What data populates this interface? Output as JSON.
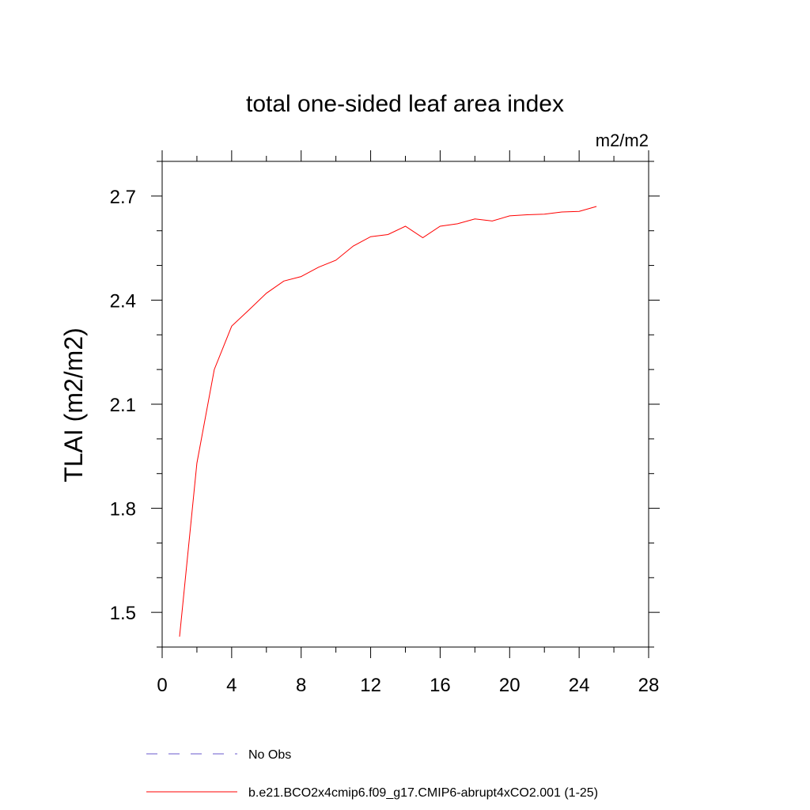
{
  "chart_data": {
    "type": "line",
    "title": "total one-sided leaf area index",
    "units_label": "m2/m2",
    "ylabel": "TLAI  (m2/m2)",
    "xlabel": "",
    "xlim": [
      0,
      28
    ],
    "ylim": [
      1.4,
      2.8
    ],
    "x_ticks": [
      0,
      4,
      8,
      12,
      16,
      20,
      24,
      28
    ],
    "y_ticks": [
      1.5,
      1.8,
      2.1,
      2.4,
      2.7
    ],
    "x_tick_labels": [
      "0",
      "4",
      "8",
      "12",
      "16",
      "20",
      "24",
      "28"
    ],
    "y_tick_labels": [
      "1.5",
      "1.8",
      "2.1",
      "2.4",
      "2.7"
    ],
    "grid": false,
    "legend_placement": "bottom",
    "series": [
      {
        "name": "b.e21.BCO2x4cmip6.f09_g17.CMIP6-abrupt4xCO2.001 (1-25)",
        "color": "#ff0000",
        "style": "solid",
        "x": [
          1,
          2,
          3,
          4,
          5,
          6,
          7,
          8,
          9,
          10,
          11,
          12,
          13,
          14,
          15,
          16,
          17,
          18,
          19,
          20,
          21,
          22,
          23,
          24,
          25
        ],
        "y": [
          1.43,
          1.93,
          2.2,
          2.325,
          2.372,
          2.42,
          2.455,
          2.468,
          2.495,
          2.515,
          2.556,
          2.583,
          2.589,
          2.613,
          2.58,
          2.613,
          2.62,
          2.634,
          2.628,
          2.643,
          2.646,
          2.648,
          2.654,
          2.656,
          2.67
        ]
      },
      {
        "name": "No Obs",
        "color": "#6a5acd",
        "style": "dashed",
        "x": [],
        "y": []
      }
    ]
  }
}
